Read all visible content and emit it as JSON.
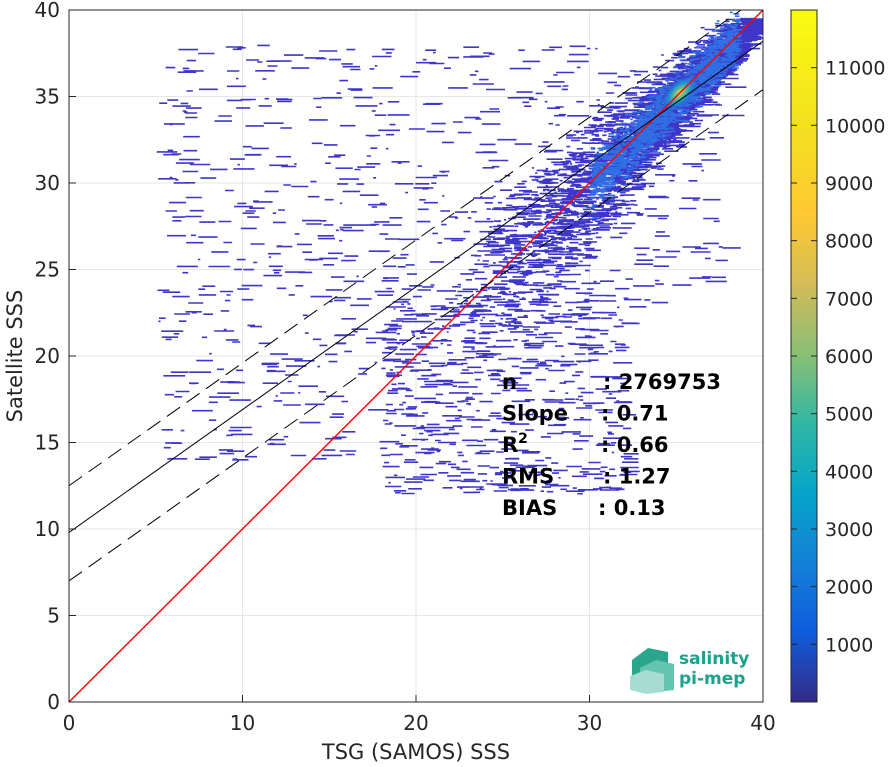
{
  "chart_data": {
    "type": "heatmap",
    "xlabel": "TSG (SAMOS) SSS",
    "ylabel": "Satellite SSS",
    "xlim": [
      0,
      40
    ],
    "ylim": [
      0,
      40
    ],
    "xticks": [
      "0",
      "10",
      "20",
      "30",
      "40"
    ],
    "yticks": [
      "0",
      "5",
      "10",
      "15",
      "20",
      "25",
      "30",
      "35",
      "40"
    ],
    "grid": true,
    "colorbar": {
      "range": [
        0,
        12000
      ],
      "ticks": [
        "1000",
        "2000",
        "3000",
        "4000",
        "5000",
        "6000",
        "7000",
        "8000",
        "9000",
        "10000",
        "11000"
      ],
      "colormap": "parula"
    },
    "lines": [
      {
        "kind": "identity",
        "intercept": 0,
        "slope": 1,
        "color": "#ff0000",
        "style": "solid"
      },
      {
        "kind": "regression",
        "intercept": 9.8,
        "slope": 0.71,
        "color": "#000000",
        "style": "solid"
      },
      {
        "kind": "regression-upper",
        "intercept": 12.5,
        "slope": 0.71,
        "color": "#000000",
        "style": "dashed"
      },
      {
        "kind": "regression-lower",
        "intercept": 7.0,
        "slope": 0.71,
        "color": "#000000",
        "style": "dashed"
      }
    ],
    "density_peak": {
      "x": 35.2,
      "y": 35.2,
      "max_count": 11800
    },
    "stats": [
      {
        "label": "n",
        "value": ": 2769753"
      },
      {
        "label": "Slope",
        "value": ": 0.71"
      },
      {
        "label": "R",
        "sup": "2",
        "value": ": 0.66"
      },
      {
        "label": "RMS",
        "value": ": 1.27"
      },
      {
        "label": "BIAS",
        "value": ": 0.13"
      }
    ]
  },
  "logo": {
    "line1": "salinity",
    "line2": "pi-mep"
  }
}
